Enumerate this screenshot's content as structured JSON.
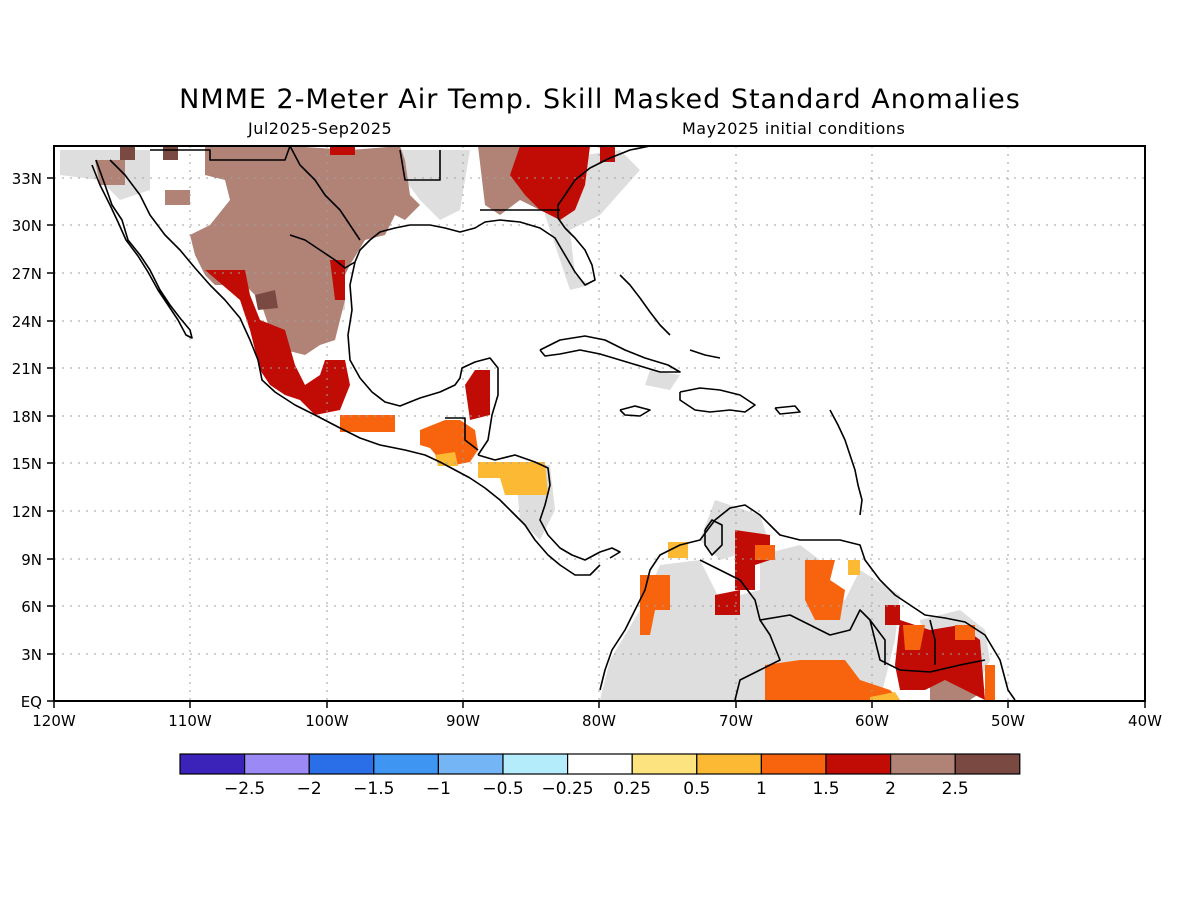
{
  "title": "NMME 2-Meter Air Temp. Skill Masked Standard Anomalies",
  "subtitle_left": "Jul2025-Sep2025",
  "subtitle_right": "May2025 initial conditions",
  "map": {
    "lat_ticks": [
      "33N",
      "30N",
      "27N",
      "24N",
      "21N",
      "18N",
      "15N",
      "12N",
      "9N",
      "6N",
      "3N",
      "EQ"
    ],
    "lon_ticks": [
      "120W",
      "110W",
      "100W",
      "90W",
      "80W",
      "70W",
      "60W",
      "50W",
      "40W"
    ],
    "lon_range": [
      -120,
      -40
    ],
    "lat_range": [
      0,
      35
    ],
    "grid": "dotted"
  },
  "colorbar": {
    "labels": [
      "-2.5",
      "-2",
      "-1.5",
      "-1",
      "-0.5",
      "-0.25",
      "0.25",
      "0.5",
      "1",
      "1.5",
      "2",
      "2.5"
    ],
    "colors": [
      "#3b22b8",
      "#9b8af5",
      "#2a6ee8",
      "#3f95f2",
      "#74b5f5",
      "#b4ecfb",
      "#ffffff",
      "#fde380",
      "#fcb933",
      "#f7640d",
      "#c10c05",
      "#b18377",
      "#7a4a42"
    ]
  },
  "legend_colors": {
    "masked_gray": "#dedede",
    "coast": "#000000"
  }
}
